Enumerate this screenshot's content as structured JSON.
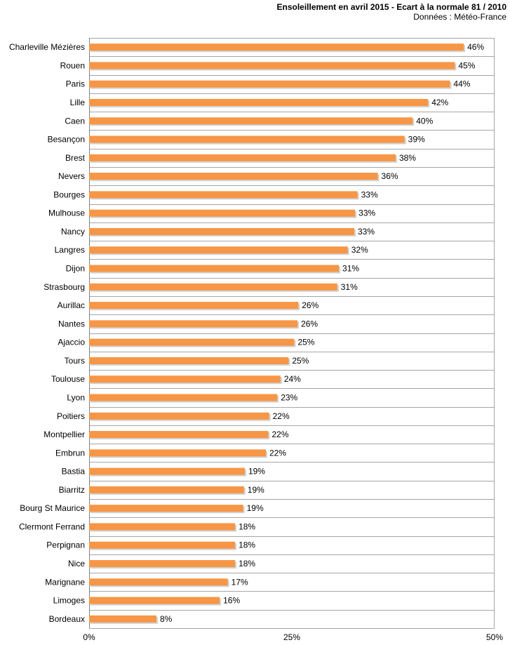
{
  "chart_data": {
    "type": "bar",
    "orientation": "horizontal",
    "title": "Ensoleillement  en avril 2015 - Ecart à la normale 81 / 2010",
    "subtitle": "Données : Météo-France",
    "categories": [
      "Charleville Mézières",
      "Rouen",
      "Paris",
      "Lille",
      "Caen",
      "Besançon",
      "Brest",
      "Nevers",
      "Bourges",
      "Mulhouse",
      "Nancy",
      "Langres",
      "Dijon",
      "Strasbourg",
      "Aurillac",
      "Nantes",
      "Ajaccio",
      "Tours",
      "Toulouse",
      "Lyon",
      "Poitiers",
      "Montpellier",
      "Embrun",
      "Bastia",
      "Biarritz",
      "Bourg St Maurice",
      "Clermont Ferrand",
      "Perpignan",
      "Nice",
      "Marignane",
      "Limoges",
      "Bordeaux"
    ],
    "values": [
      46.2,
      45.1,
      44.5,
      41.8,
      39.9,
      38.9,
      37.8,
      35.6,
      33.1,
      32.8,
      32.7,
      31.9,
      30.8,
      30.6,
      25.8,
      25.7,
      25.3,
      24.6,
      23.6,
      23.2,
      22.2,
      22.1,
      21.8,
      19.2,
      19.1,
      19.0,
      18.0,
      18.0,
      18.0,
      17.1,
      16.1,
      8.3
    ],
    "value_labels": [
      "46%",
      "45%",
      "44%",
      "42%",
      "40%",
      "39%",
      "38%",
      "36%",
      "33%",
      "33%",
      "33%",
      "32%",
      "31%",
      "31%",
      "26%",
      "26%",
      "25%",
      "25%",
      "24%",
      "23%",
      "22%",
      "22%",
      "22%",
      "19%",
      "19%",
      "19%",
      "18%",
      "18%",
      "18%",
      "17%",
      "16%",
      "8%"
    ],
    "xlim": [
      0,
      50
    ],
    "xticks": [
      0,
      25,
      50
    ],
    "xtick_labels": [
      "0%",
      "25%",
      "50%"
    ],
    "bar_color": "#f79646",
    "grid_color": "#a6a6a6",
    "grid": true,
    "legend": false
  }
}
